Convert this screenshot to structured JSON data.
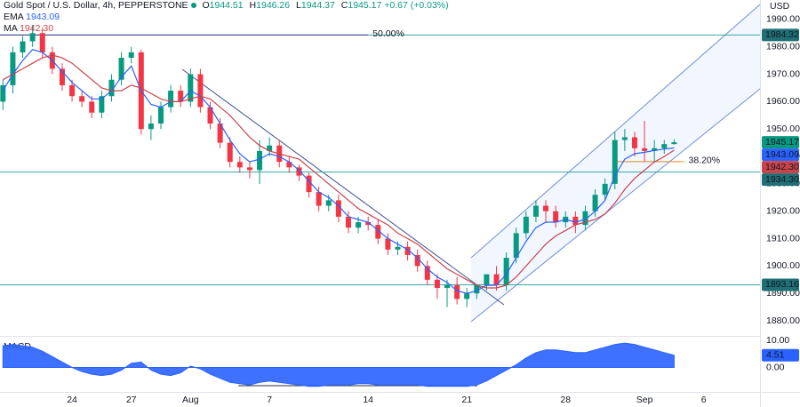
{
  "chart_data": {
    "type": "candlestick",
    "title": "Gold Spot / U.S. Dollar, 4h, PEPPERSTONE",
    "quote_keys": [
      "O",
      "H",
      "L",
      "C"
    ],
    "change": "+0.67 (+0.03%)",
    "currency": "USD",
    "xlim": [
      -0.3,
      76.7
    ],
    "xticks": [
      {
        "value": 7,
        "label": "24"
      },
      {
        "value": 13,
        "label": "27"
      },
      {
        "value": 19,
        "label": "Aug"
      },
      {
        "value": 27,
        "label": "7"
      },
      {
        "value": 37,
        "label": "14"
      },
      {
        "value": 47,
        "label": "21"
      },
      {
        "value": 57,
        "label": "28"
      },
      {
        "value": 65,
        "label": "Sep"
      },
      {
        "value": 71,
        "label": "6"
      }
    ],
    "ylim": [
      1874.5,
      1997.1
    ],
    "yticks": [
      {
        "value": 1880,
        "label": "1880.00"
      },
      {
        "value": 1890,
        "label": "1890.00"
      },
      {
        "value": 1900,
        "label": "1900.00"
      },
      {
        "value": 1910,
        "label": "1910.00"
      },
      {
        "value": 1920,
        "label": "1920.00"
      },
      {
        "value": 1930,
        "label": "1930.00"
      },
      {
        "value": 1940,
        "label": "1940.00"
      },
      {
        "value": 1950,
        "label": "1950.00"
      },
      {
        "value": 1960,
        "label": "1960.00"
      },
      {
        "value": 1970,
        "label": "1970.00"
      },
      {
        "value": 1980,
        "label": "1980.00"
      },
      {
        "value": 1990,
        "label": "1990.00"
      }
    ],
    "grid": false,
    "candles": {
      "up_color": "#089981",
      "down_color": "#f23645",
      "open": [
        1960,
        1966,
        1978,
        1982,
        1985,
        1978,
        1972,
        1966,
        1962,
        1960,
        1956,
        1962,
        1968,
        1976,
        1978,
        1950,
        1952,
        1958,
        1964,
        1960,
        1970,
        1958,
        1952,
        1945,
        1938,
        1936,
        1935,
        1942,
        1944,
        1938,
        1936,
        1933,
        1927,
        1922,
        1924,
        1918,
        1914,
        1916,
        1915,
        1910,
        1906,
        1907,
        1904,
        1900,
        1895,
        1892,
        1893,
        1888,
        1890,
        1893,
        1897,
        1893,
        1903,
        1912,
        1918,
        1922,
        1920,
        1916,
        1918,
        1915,
        1920,
        1926,
        1930,
        1946,
        1947,
        1943,
        1942,
        1943,
        1944.51
      ],
      "high": [
        1968,
        1980,
        1984,
        1988,
        1987,
        1980,
        1974,
        1968,
        1964,
        1962,
        1964,
        1970,
        1978,
        1980,
        1979,
        1955,
        1960,
        1966,
        1966,
        1972,
        1972,
        1960,
        1954,
        1947,
        1940,
        1938,
        1946,
        1947,
        1946,
        1940,
        1937,
        1934,
        1929,
        1926,
        1926,
        1920,
        1918,
        1918,
        1917,
        1912,
        1909,
        1909,
        1906,
        1902,
        1897,
        1895,
        1896,
        1892,
        1893,
        1896,
        1900,
        1905,
        1914,
        1920,
        1924,
        1924,
        1922,
        1920,
        1920,
        1922,
        1928,
        1932,
        1949,
        1950,
        1949,
        1953,
        1946,
        1946,
        1946.26
      ],
      "low": [
        1957,
        1963,
        1976,
        1980,
        1976,
        1970,
        1964,
        1960,
        1958,
        1954,
        1954,
        1960,
        1966,
        1974,
        1948,
        1946,
        1950,
        1956,
        1958,
        1958,
        1956,
        1950,
        1943,
        1936,
        1934,
        1932,
        1930,
        1940,
        1936,
        1934,
        1931,
        1925,
        1920,
        1920,
        1916,
        1912,
        1912,
        1913,
        1908,
        1904,
        1904,
        1902,
        1898,
        1893,
        1888,
        1885,
        1886,
        1885,
        1888,
        1891,
        1891,
        1891,
        1901,
        1910,
        1916,
        1916,
        1914,
        1914,
        1912,
        1913,
        1918,
        1924,
        1928,
        1942,
        1940,
        1938,
        1938,
        1941,
        1944.37
      ],
      "close": [
        1966,
        1978,
        1982,
        1985,
        1978,
        1972,
        1966,
        1962,
        1960,
        1956,
        1962,
        1968,
        1976,
        1978,
        1950,
        1952,
        1958,
        1964,
        1960,
        1970,
        1958,
        1952,
        1945,
        1938,
        1936,
        1935,
        1942,
        1944,
        1938,
        1936,
        1933,
        1927,
        1922,
        1924,
        1918,
        1914,
        1916,
        1915,
        1910,
        1906,
        1907,
        1904,
        1900,
        1895,
        1892,
        1893,
        1888,
        1890,
        1893,
        1897,
        1893,
        1903,
        1912,
        1918,
        1922,
        1920,
        1916,
        1918,
        1915,
        1920,
        1926,
        1930,
        1946,
        1947,
        1943,
        1942,
        1943,
        1944.51,
        1945.17
      ]
    },
    "series": [
      {
        "name": "EMA",
        "color": "#2962ff",
        "last_label": "1943.09",
        "values": [
          1964,
          1970,
          1975,
          1979,
          1978,
          1975,
          1971,
          1967,
          1964,
          1961,
          1961,
          1964,
          1969,
          1973,
          1964,
          1959,
          1958,
          1960,
          1960,
          1964,
          1962,
          1958,
          1952,
          1946,
          1941,
          1938,
          1939,
          1941,
          1940,
          1938,
          1935,
          1931,
          1927,
          1925,
          1922,
          1918,
          1917,
          1916,
          1913,
          1910,
          1908,
          1906,
          1903,
          1899,
          1896,
          1894,
          1891,
          1890,
          1891,
          1893,
          1893,
          1897,
          1903,
          1909,
          1914,
          1916,
          1916,
          1917,
          1916,
          1917,
          1920,
          1924,
          1933,
          1939,
          1941,
          1941.5,
          1942.2,
          1942.7,
          1943.09
        ]
      },
      {
        "name": "MA",
        "color": "#c9434a",
        "last_label": "1942.30",
        "values": [
          1968,
          1970,
          1972,
          1974,
          1976,
          1977,
          1976,
          1974,
          1971,
          1968,
          1965,
          1964,
          1964,
          1966,
          1965,
          1963,
          1961,
          1960,
          1960,
          1961,
          1962,
          1961,
          1958,
          1955,
          1951,
          1947,
          1944,
          1942,
          1941,
          1940,
          1939,
          1936,
          1933,
          1930,
          1927,
          1924,
          1921,
          1919,
          1917,
          1915,
          1912,
          1910,
          1908,
          1905,
          1902,
          1899,
          1897,
          1895,
          1893,
          1892,
          1892,
          1893,
          1896,
          1900,
          1904,
          1908,
          1911,
          1913,
          1915,
          1916,
          1917,
          1919,
          1923,
          1928,
          1932,
          1935,
          1938,
          1940,
          1942.3
        ]
      }
    ],
    "levels": [
      {
        "value": 1984.32,
        "label": "1984.32",
        "color": "#3aa6a6"
      },
      {
        "value": 1934.3,
        "label": "1934.30",
        "color": "#3aa6a6"
      },
      {
        "value": 1893.16,
        "label": "1893.16",
        "color": "#3aa6a6"
      }
    ],
    "fib_levels": [
      {
        "label": "50.00%",
        "value": 1984.32,
        "x_range": [
          -0.3,
          37
        ],
        "color": "#4a3a85"
      },
      {
        "label": "38.20%",
        "value": 1938.1,
        "x_range": [
          62,
          69
        ],
        "color": "#e08a1e"
      }
    ],
    "macd": {
      "title": "MACD",
      "color": "#2962ff",
      "last_label": "4.51",
      "ylim": [
        -8.7,
        11
      ],
      "yticks": [
        {
          "value": 10,
          "label": "10.00"
        },
        {
          "value": 0,
          "label": "0.00"
        }
      ],
      "values": [
        8,
        8.5,
        8,
        7.5,
        6,
        4,
        2,
        0,
        -1.5,
        -2.5,
        -3,
        -2.5,
        -1,
        1.5,
        2,
        -1,
        -2.5,
        -3,
        -2,
        0.5,
        -0.5,
        -2.5,
        -4,
        -5.5,
        -6,
        -6.5,
        -5.5,
        -5,
        -5.5,
        -6,
        -6.5,
        -7,
        -7,
        -6.5,
        -6.5,
        -6.5,
        -6,
        -6,
        -6.5,
        -6.5,
        -6.5,
        -6.5,
        -6.5,
        -7,
        -7,
        -7,
        -7,
        -7,
        -6.5,
        -5,
        -3,
        -1,
        1,
        3.5,
        5.5,
        6.5,
        6.5,
        6,
        5.5,
        5.5,
        6.5,
        7.5,
        8.5,
        9,
        8.5,
        7.5,
        6.5,
        5.5,
        4.51
      ]
    }
  }
}
